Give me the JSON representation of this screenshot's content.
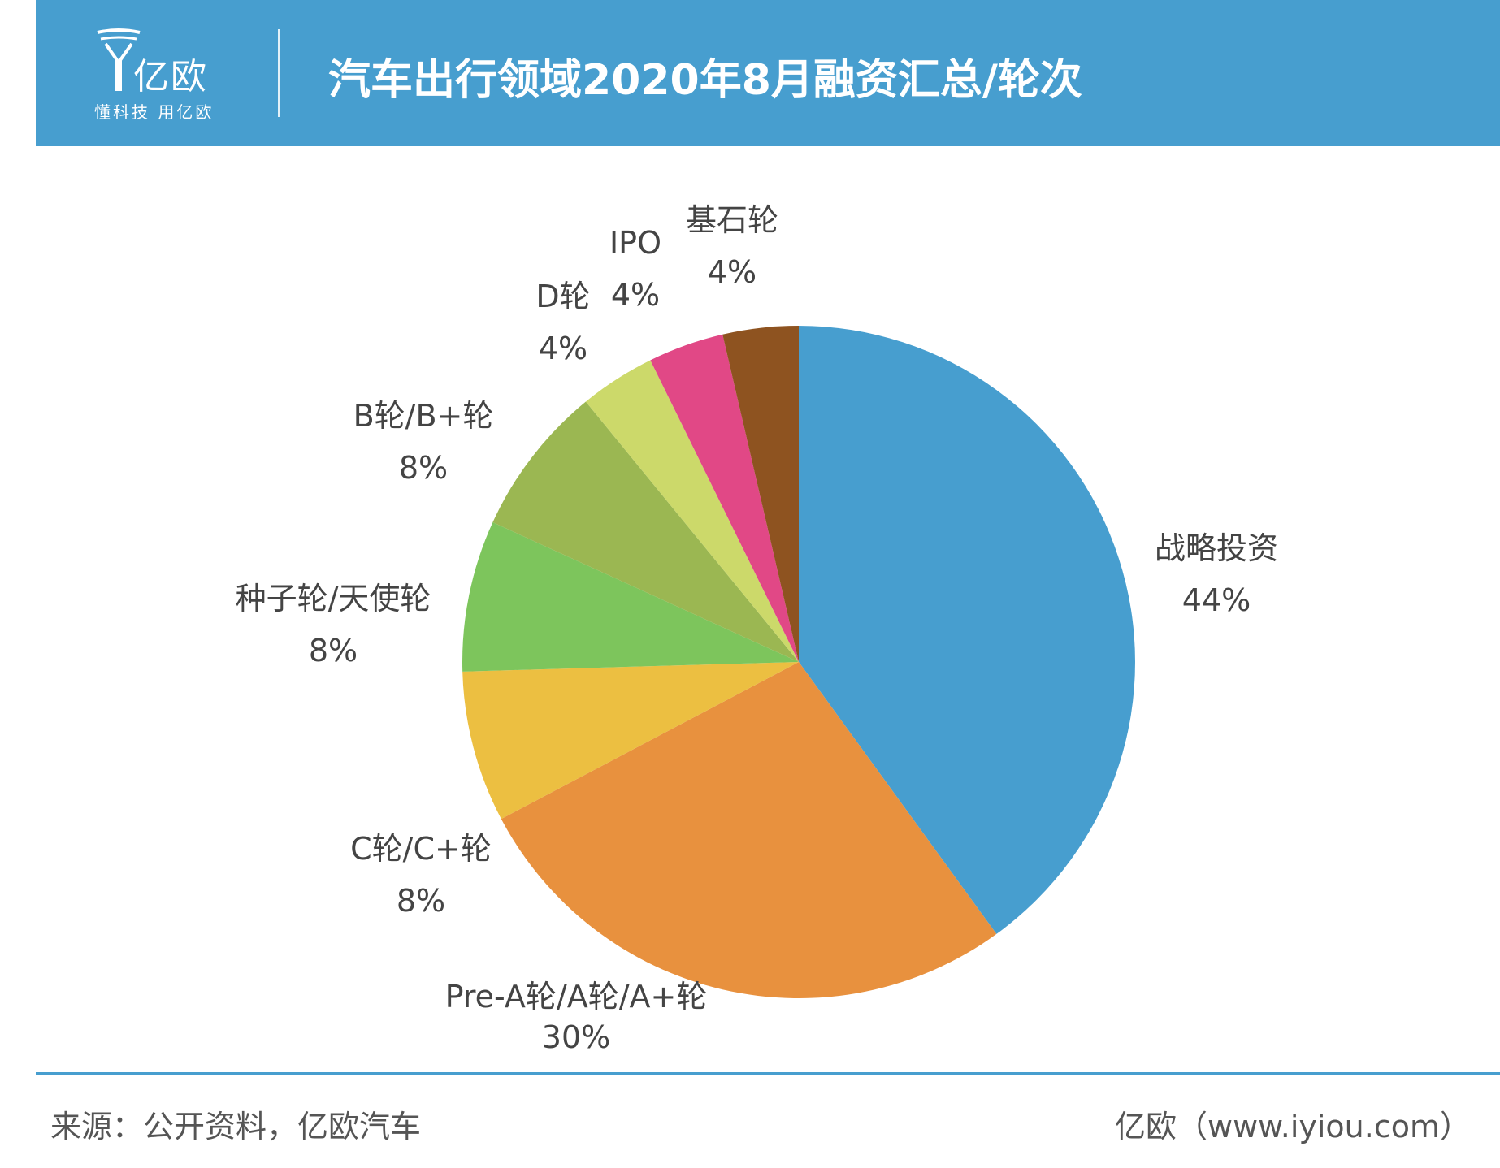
{
  "header": {
    "logo_brand": "亿欧",
    "logo_slogan": "懂科技 用亿欧",
    "title": "汽车出行领域2020年8月融资汇总/轮次"
  },
  "chart_data": {
    "type": "pie",
    "title": "汽车出行领域2020年8月融资汇总/轮次",
    "start_angle_deg": 0,
    "direction": "clockwise",
    "slices": [
      {
        "label": "战略投资",
        "value": 44,
        "value_label": "44%",
        "color": "#479ecf"
      },
      {
        "label": "Pre-A轮/A轮/A+轮",
        "value": 30,
        "value_label": "30%",
        "color": "#e8913e"
      },
      {
        "label": "C轮/C+轮",
        "value": 8,
        "value_label": "8%",
        "color": "#ecbf41"
      },
      {
        "label": "种子轮/天使轮",
        "value": 8,
        "value_label": "8%",
        "color": "#7dc55c"
      },
      {
        "label": "B轮/B+轮",
        "value": 8,
        "value_label": "8%",
        "color": "#9bb752"
      },
      {
        "label": "D轮",
        "value": 4,
        "value_label": "4%",
        "color": "#ccd96a"
      },
      {
        "label": "IPO",
        "value": 4,
        "value_label": "4%",
        "color": "#e14886"
      },
      {
        "label": "基石轮",
        "value": 4,
        "value_label": "4%",
        "color": "#8e5320"
      }
    ]
  },
  "footer": {
    "source": "来源：公开资料，亿欧汽车",
    "site": "亿欧（www.iyiou.com）"
  }
}
